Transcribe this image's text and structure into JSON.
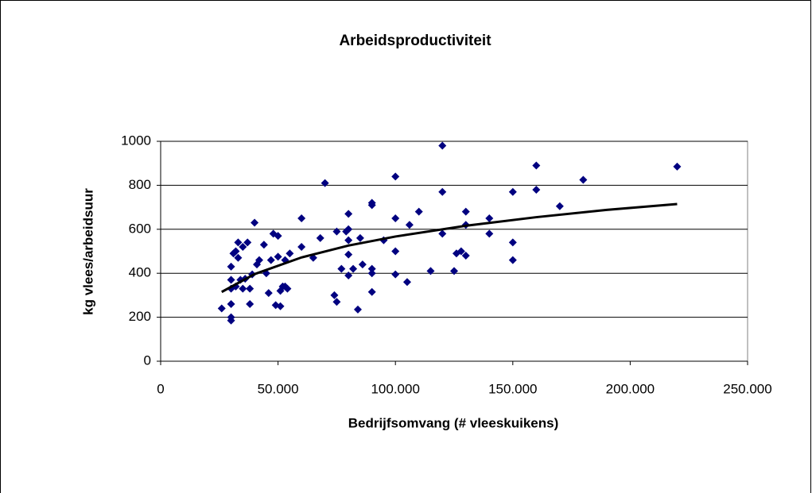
{
  "chart_data": {
    "type": "scatter",
    "title": "Arbeidsproductiviteit",
    "xlabel": "Bedrijfsomvang (# vleeskuikens)",
    "ylabel": "kg vlees/arbeidsuur",
    "xlim": [
      0,
      250000
    ],
    "ylim": [
      0,
      1000
    ],
    "xticks": [
      0,
      {
        "value": 50000,
        "label": "50.000"
      },
      {
        "value": 100000,
        "label": "100.000"
      },
      {
        "value": 150000,
        "label": "150.000"
      },
      {
        "value": 200000,
        "label": "200.000"
      },
      {
        "value": 250000,
        "label": "250.000"
      }
    ],
    "yticks": [
      0,
      200,
      400,
      600,
      800,
      1000
    ],
    "grid": true,
    "series": [
      {
        "color": "#000080",
        "x": [
          26000,
          30000,
          30000,
          30000,
          30000,
          30000,
          30000,
          31000,
          32000,
          32000,
          33000,
          33000,
          34000,
          35000,
          35000,
          36000,
          37000,
          38000,
          38000,
          39000,
          40000,
          41000,
          42000,
          44000,
          45000,
          46000,
          47000,
          48000,
          49000,
          50000,
          50000,
          51000,
          51000,
          52000,
          53000,
          53000,
          54000,
          55000,
          60000,
          60000,
          65000,
          68000,
          70000,
          74000,
          75000,
          75000,
          77000,
          79000,
          80000,
          80000,
          80000,
          80000,
          80000,
          82000,
          84000,
          85000,
          86000,
          90000,
          90000,
          90000,
          90000,
          90000,
          95000,
          100000,
          100000,
          100000,
          100000,
          105000,
          106000,
          110000,
          115000,
          120000,
          120000,
          120000,
          125000,
          126000,
          128000,
          130000,
          130000,
          130000,
          140000,
          140000,
          150000,
          150000,
          150000,
          160000,
          160000,
          170000,
          180000,
          220000
        ],
        "values": [
          240,
          200,
          185,
          260,
          330,
          370,
          430,
          490,
          500,
          340,
          540,
          470,
          370,
          520,
          330,
          375,
          540,
          330,
          260,
          395,
          630,
          440,
          460,
          530,
          400,
          310,
          460,
          580,
          255,
          570,
          475,
          320,
          250,
          340,
          340,
          460,
          330,
          490,
          650,
          520,
          470,
          560,
          810,
          300,
          590,
          270,
          420,
          590,
          600,
          550,
          390,
          485,
          670,
          420,
          235,
          560,
          440,
          720,
          710,
          400,
          420,
          315,
          550,
          840,
          650,
          500,
          395,
          360,
          620,
          680,
          410,
          980,
          770,
          580,
          410,
          490,
          500,
          680,
          620,
          480,
          650,
          580,
          770,
          540,
          460,
          890,
          780,
          705,
          825,
          885
        ]
      }
    ],
    "trendline": {
      "color": "#000000",
      "x": [
        26000,
        40000,
        60000,
        80000,
        100000,
        130000,
        160000,
        190000,
        220000
      ],
      "values": [
        315,
        396,
        472,
        526,
        567,
        616,
        655,
        688,
        715
      ]
    }
  }
}
